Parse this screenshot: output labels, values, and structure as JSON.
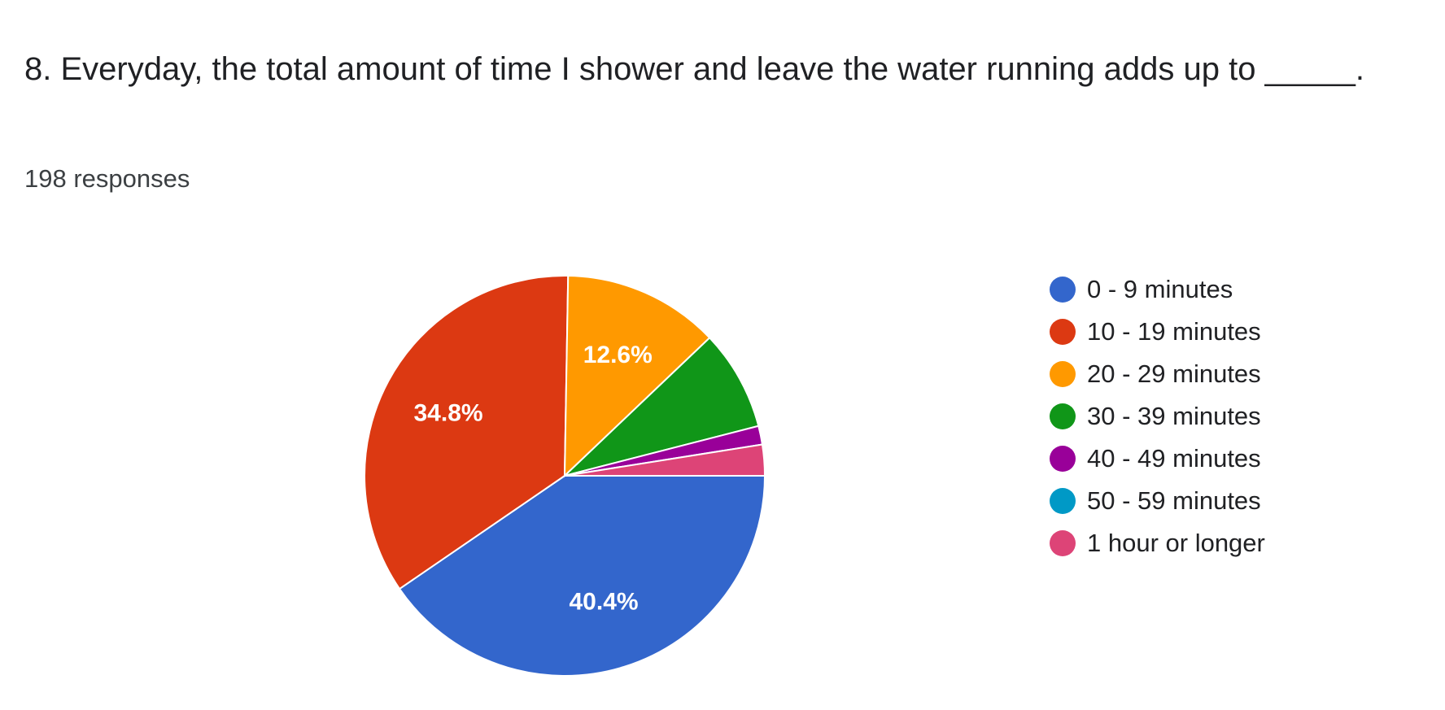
{
  "question": {
    "title": "8. Everyday, the total amount of time I shower and leave the water running adds up to _____.",
    "response_count": "198 responses"
  },
  "chart_data": {
    "type": "pie",
    "categories": [
      "0 - 9 minutes",
      "10 - 19 minutes",
      "20 - 29 minutes",
      "30 - 39 minutes",
      "40 - 49 minutes",
      "50 - 59 minutes",
      "1 hour or longer"
    ],
    "values": [
      40.4,
      34.8,
      12.6,
      8.1,
      1.5,
      0,
      2.5
    ],
    "value_unit": "percent",
    "slice_labels": [
      "40.4%",
      "34.8%",
      "12.6%",
      "",
      "",
      "",
      ""
    ],
    "colors": [
      "#3366cc",
      "#dc3912",
      "#ff9900",
      "#109618",
      "#990099",
      "#0099c6",
      "#dd4477"
    ],
    "legend_position": "right"
  }
}
